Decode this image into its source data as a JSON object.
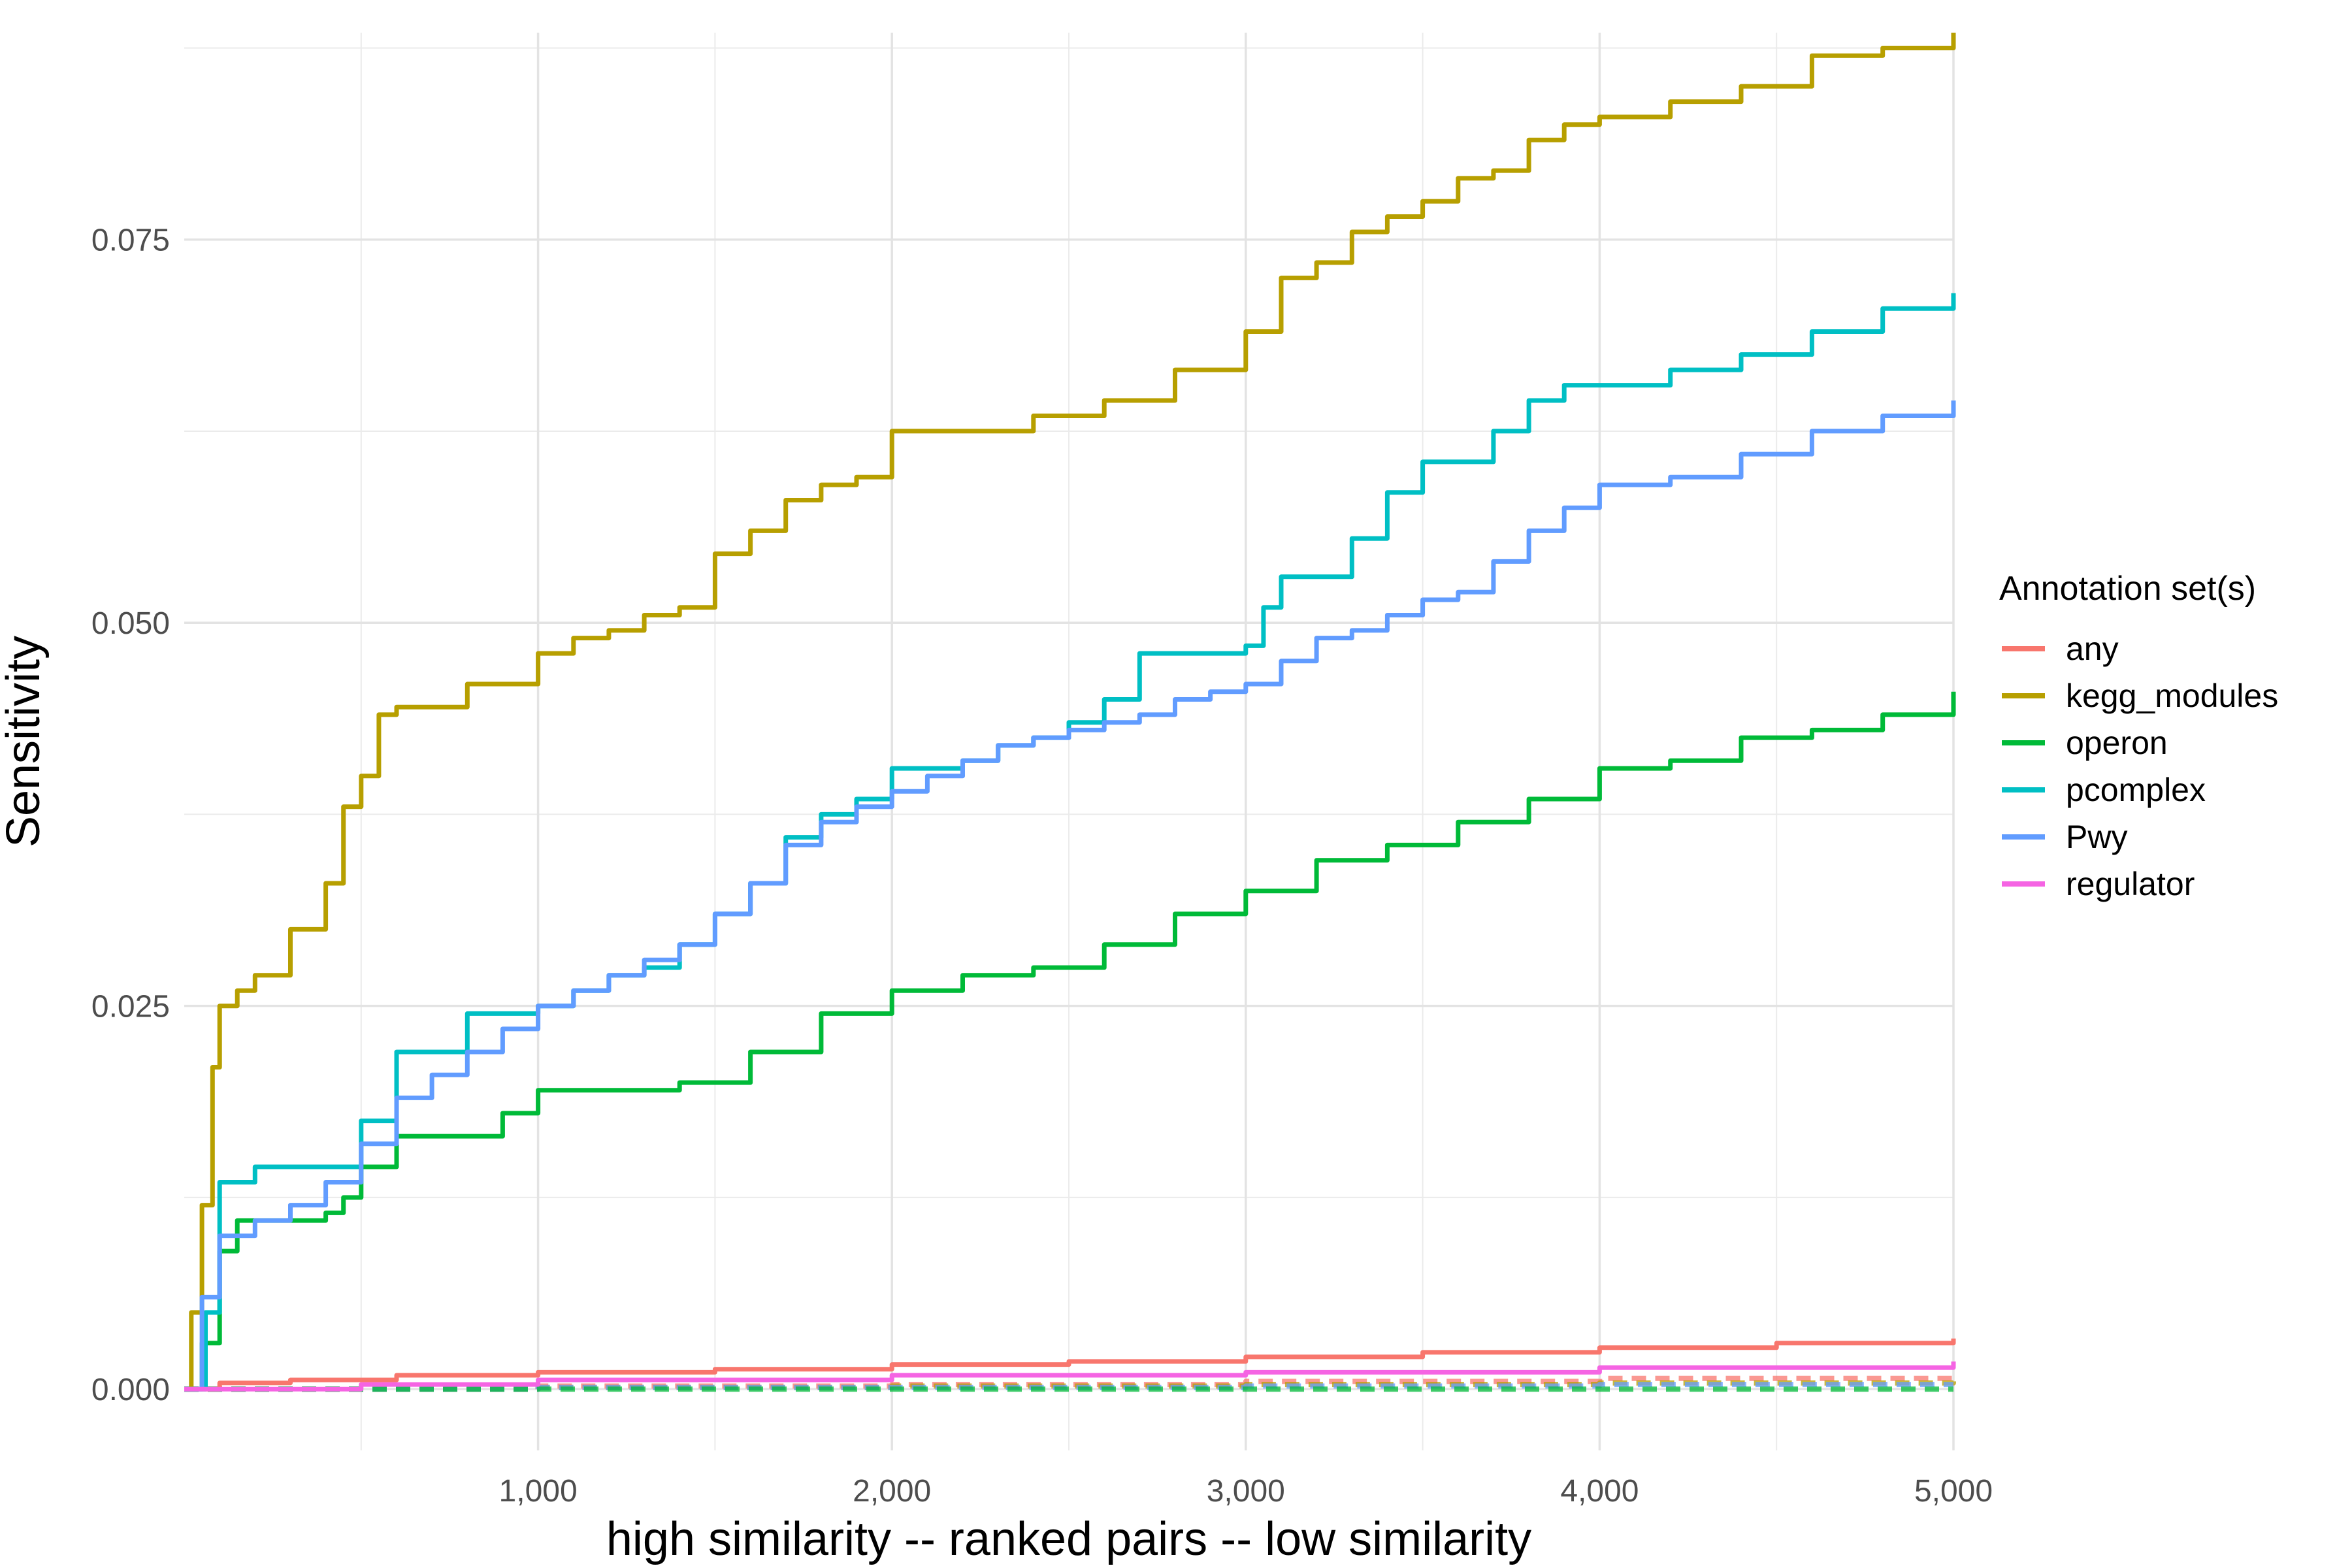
{
  "chart_data": {
    "type": "line",
    "title": "",
    "xlabel": "high similarity -- ranked pairs -- low similarity",
    "ylabel": "Sensitivity",
    "xlim": [
      0,
      5000
    ],
    "ylim": [
      -0.004,
      0.0885
    ],
    "x_ticks": [
      1000,
      2000,
      3000,
      4000,
      5000
    ],
    "x_tick_labels": [
      "1,000",
      "2,000",
      "3,000",
      "4,000",
      "5,000"
    ],
    "y_ticks": [
      0,
      0.025,
      0.05,
      0.075
    ],
    "y_tick_labels": [
      "0.000",
      "0.025",
      "0.050",
      "0.075"
    ],
    "grid": true,
    "legend_title": "Annotation set(s)",
    "legend_position": "right",
    "series": [
      {
        "name": "any",
        "color": "#F8766D",
        "style": "solid",
        "x": [
          0,
          100,
          300,
          600,
          1000,
          1500,
          2000,
          2500,
          3000,
          3500,
          4000,
          4500,
          5000
        ],
        "y": [
          0,
          0.0004,
          0.0006,
          0.0009,
          0.0011,
          0.0013,
          0.0016,
          0.0018,
          0.0021,
          0.0024,
          0.0027,
          0.003,
          0.0033
        ]
      },
      {
        "name": "kegg_modules",
        "color": "#B79F00",
        "style": "solid",
        "x": [
          0,
          20,
          50,
          80,
          100,
          150,
          200,
          300,
          400,
          450,
          500,
          550,
          600,
          700,
          800,
          900,
          1000,
          1100,
          1200,
          1300,
          1400,
          1500,
          1600,
          1700,
          1800,
          1900,
          2000,
          2200,
          2400,
          2600,
          2800,
          3000,
          3100,
          3200,
          3300,
          3400,
          3500,
          3600,
          3700,
          3800,
          3900,
          4000,
          4200,
          4400,
          4600,
          4800,
          5000
        ],
        "y": [
          0,
          0.005,
          0.012,
          0.021,
          0.025,
          0.026,
          0.027,
          0.03,
          0.033,
          0.038,
          0.04,
          0.044,
          0.0445,
          0.0445,
          0.046,
          0.046,
          0.048,
          0.049,
          0.0495,
          0.0505,
          0.051,
          0.0545,
          0.056,
          0.058,
          0.059,
          0.0595,
          0.0625,
          0.0625,
          0.0635,
          0.0645,
          0.0665,
          0.069,
          0.0725,
          0.0735,
          0.0755,
          0.0765,
          0.0775,
          0.079,
          0.0795,
          0.0815,
          0.0825,
          0.083,
          0.084,
          0.085,
          0.087,
          0.0875,
          0.0885
        ]
      },
      {
        "name": "operon",
        "color": "#00BA38",
        "style": "solid",
        "x": [
          0,
          50,
          100,
          150,
          300,
          400,
          450,
          500,
          600,
          800,
          900,
          1000,
          1200,
          1400,
          1600,
          1800,
          2000,
          2200,
          2400,
          2600,
          2800,
          3000,
          3200,
          3400,
          3600,
          3800,
          4000,
          4200,
          4400,
          4600,
          4800,
          5000
        ],
        "y": [
          0,
          0.003,
          0.009,
          0.011,
          0.011,
          0.0115,
          0.0125,
          0.0145,
          0.0165,
          0.0165,
          0.018,
          0.0195,
          0.0195,
          0.02,
          0.022,
          0.0245,
          0.026,
          0.027,
          0.0275,
          0.029,
          0.031,
          0.0325,
          0.0345,
          0.0355,
          0.037,
          0.0385,
          0.0405,
          0.041,
          0.0425,
          0.043,
          0.044,
          0.0455
        ]
      },
      {
        "name": "pcomplex",
        "color": "#00BFC4",
        "style": "solid",
        "x": [
          0,
          60,
          100,
          200,
          300,
          400,
          450,
          500,
          550,
          600,
          650,
          700,
          800,
          900,
          1000,
          1100,
          1200,
          1300,
          1400,
          1500,
          1600,
          1700,
          1800,
          1900,
          2000,
          2100,
          2200,
          2300,
          2400,
          2500,
          2600,
          2700,
          2800,
          2900,
          3000,
          3050,
          3100,
          3200,
          3300,
          3400,
          3500,
          3600,
          3700,
          3800,
          3900,
          4000,
          4200,
          4400,
          4600,
          4800,
          5000
        ],
        "y": [
          0,
          0.005,
          0.0135,
          0.0145,
          0.0145,
          0.0145,
          0.0145,
          0.0175,
          0.0175,
          0.022,
          0.022,
          0.022,
          0.0245,
          0.0245,
          0.025,
          0.026,
          0.027,
          0.0275,
          0.029,
          0.031,
          0.033,
          0.036,
          0.0375,
          0.0385,
          0.0405,
          0.0405,
          0.041,
          0.042,
          0.0425,
          0.0435,
          0.045,
          0.048,
          0.048,
          0.048,
          0.0485,
          0.051,
          0.053,
          0.053,
          0.0555,
          0.0585,
          0.0605,
          0.0605,
          0.0625,
          0.0645,
          0.0655,
          0.0655,
          0.0665,
          0.0675,
          0.069,
          0.0705,
          0.0715
        ]
      },
      {
        "name": "Pwy",
        "color": "#619CFF",
        "style": "solid",
        "x": [
          0,
          50,
          100,
          200,
          300,
          400,
          500,
          600,
          700,
          800,
          900,
          1000,
          1100,
          1200,
          1300,
          1400,
          1500,
          1600,
          1700,
          1800,
          1900,
          2000,
          2100,
          2200,
          2300,
          2400,
          2500,
          2600,
          2700,
          2800,
          2900,
          3000,
          3100,
          3200,
          3300,
          3400,
          3500,
          3600,
          3700,
          3800,
          3900,
          4000,
          4200,
          4400,
          4600,
          4800,
          5000
        ],
        "y": [
          0,
          0.006,
          0.01,
          0.011,
          0.012,
          0.0135,
          0.016,
          0.019,
          0.0205,
          0.022,
          0.0235,
          0.025,
          0.026,
          0.027,
          0.028,
          0.029,
          0.031,
          0.033,
          0.0355,
          0.037,
          0.038,
          0.039,
          0.04,
          0.041,
          0.042,
          0.0425,
          0.043,
          0.0435,
          0.044,
          0.045,
          0.0455,
          0.046,
          0.0475,
          0.049,
          0.0495,
          0.0505,
          0.0515,
          0.052,
          0.054,
          0.056,
          0.0575,
          0.059,
          0.0595,
          0.061,
          0.0625,
          0.0635,
          0.0645
        ]
      },
      {
        "name": "regulator",
        "color": "#F564E3",
        "style": "solid",
        "x": [
          0,
          500,
          1000,
          2000,
          3000,
          4000,
          5000
        ],
        "y": [
          0,
          0.0003,
          0.0006,
          0.0009,
          0.0011,
          0.0014,
          0.0018
        ]
      },
      {
        "name": "",
        "color": "#F8766D",
        "style": "dashed",
        "x": [
          0,
          1000,
          2000,
          3000,
          4000,
          5000
        ],
        "y": [
          0,
          0.0002,
          0.0003,
          0.0005,
          0.0007,
          0.0008
        ]
      },
      {
        "name": "",
        "color": "#B79F00",
        "style": "dashed",
        "x": [
          0,
          1000,
          2000,
          3000,
          4000,
          5000
        ],
        "y": [
          0,
          0.0001,
          0.0002,
          0.0003,
          0.0004,
          0.0005
        ]
      },
      {
        "name": "",
        "color": "#619CFF",
        "style": "dashed",
        "x": [
          0,
          1000,
          2000,
          3000,
          4000,
          5000
        ],
        "y": [
          0,
          0.0001,
          0.0001,
          0.0002,
          0.0003,
          0.0003
        ]
      },
      {
        "name": "",
        "color": "#00BA38",
        "style": "dashed",
        "x": [
          0,
          1000,
          2000,
          3000,
          4000,
          5000
        ],
        "y": [
          0,
          0,
          0,
          0,
          0,
          0
        ]
      }
    ]
  }
}
